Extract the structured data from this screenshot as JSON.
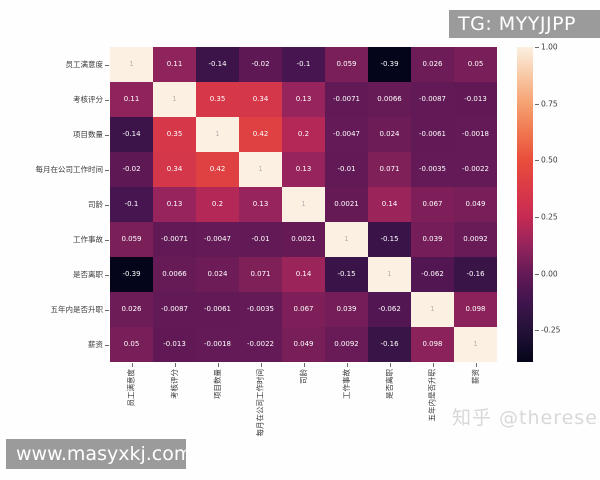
{
  "watermarks": {
    "tg_banner": "TG: MYYJJPP",
    "site_banner": "www.masyxkj.com",
    "zhihu": "知乎 @therese"
  },
  "colors": {
    "banner_bg": "#9b9b9b",
    "banner_text": "#ffffff",
    "zhihu_text": "#d8d8d8",
    "axis_label": "#3a3a3a",
    "annotation_on_dark": "#ffffff",
    "annotation_on_light": "#b9b5ae",
    "background": "#fefefe"
  },
  "chart_data": {
    "type": "heatmap",
    "title": "",
    "xlabel": "",
    "ylabel": "",
    "labels": [
      "员工满意度",
      "考核评分",
      "项目数量",
      "每月在公司工作时间",
      "司龄",
      "工作事故",
      "是否离职",
      "五年内是否升职",
      "薪资"
    ],
    "values": [
      [
        1,
        0.11,
        -0.14,
        -0.02,
        -0.1,
        0.059,
        -0.39,
        0.026,
        0.05
      ],
      [
        0.11,
        1,
        0.35,
        0.34,
        0.13,
        -0.0071,
        0.0066,
        -0.0087,
        -0.013
      ],
      [
        -0.14,
        0.35,
        1,
        0.42,
        0.2,
        -0.0047,
        0.024,
        -0.0061,
        -0.0018
      ],
      [
        -0.02,
        0.34,
        0.42,
        1,
        0.13,
        -0.01,
        0.071,
        -0.0035,
        -0.0022
      ],
      [
        -0.1,
        0.13,
        0.2,
        0.13,
        1,
        0.0021,
        0.14,
        0.067,
        0.049
      ],
      [
        0.059,
        -0.0071,
        -0.0047,
        -0.01,
        0.0021,
        1,
        -0.15,
        0.039,
        0.0092
      ],
      [
        -0.39,
        0.0066,
        0.024,
        0.071,
        0.14,
        -0.15,
        1,
        -0.062,
        -0.16
      ],
      [
        0.026,
        -0.0087,
        -0.0061,
        -0.0035,
        0.067,
        0.039,
        -0.062,
        1,
        0.098
      ],
      [
        0.05,
        -0.013,
        -0.0018,
        -0.0022,
        0.049,
        0.0092,
        -0.16,
        0.098,
        1
      ]
    ],
    "cell_labels": [
      [
        "1",
        "0.11",
        "-0.14",
        "-0.02",
        "-0.1",
        "0.059",
        "-0.39",
        "0.026",
        "0.05"
      ],
      [
        "0.11",
        "1",
        "0.35",
        "0.34",
        "0.13",
        "-0.0071",
        "0.0066",
        "-0.0087",
        "-0.013"
      ],
      [
        "-0.14",
        "0.35",
        "1",
        "0.42",
        "0.2",
        "-0.0047",
        "0.024",
        "-0.0061",
        "-0.0018"
      ],
      [
        "-0.02",
        "0.34",
        "0.42",
        "1",
        "0.13",
        "-0.01",
        "0.071",
        "-0.0035",
        "-0.0022"
      ],
      [
        "-0.1",
        "0.13",
        "0.2",
        "0.13",
        "1",
        "0.0021",
        "0.14",
        "0.067",
        "0.049"
      ],
      [
        "0.059",
        "-0.0071",
        "-0.0047",
        "-0.01",
        "0.0021",
        "1",
        "-0.15",
        "0.039",
        "0.0092"
      ],
      [
        "-0.39",
        "0.0066",
        "0.024",
        "0.071",
        "0.14",
        "-0.15",
        "1",
        "-0.062",
        "-0.16"
      ],
      [
        "0.026",
        "-0.0087",
        "-0.0061",
        "-0.0035",
        "0.067",
        "0.039",
        "-0.062",
        "1",
        "0.098"
      ],
      [
        "0.05",
        "-0.013",
        "-0.0018",
        "-0.0022",
        "0.049",
        "0.0092",
        "-0.16",
        "0.098",
        "1"
      ]
    ],
    "vmin": -0.39,
    "vmax": 1.0,
    "legend_position": "right-colorbar",
    "grid": false,
    "colorbar_ticks": [
      {
        "value": 1.0,
        "label": "1.00"
      },
      {
        "value": 0.75,
        "label": "0.75"
      },
      {
        "value": 0.5,
        "label": "0.50"
      },
      {
        "value": 0.25,
        "label": "0.25"
      },
      {
        "value": 0.0,
        "label": "0.00"
      },
      {
        "value": -0.25,
        "label": "-0.25"
      }
    ],
    "colormap": {
      "name": "rocket",
      "stops": [
        [
          0.0,
          "#04051a"
        ],
        [
          0.1,
          "#231238"
        ],
        [
          0.2,
          "#43154f"
        ],
        [
          0.28,
          "#641a56"
        ],
        [
          0.37,
          "#95245c"
        ],
        [
          0.46,
          "#c62a53"
        ],
        [
          0.55,
          "#da3a47"
        ],
        [
          0.64,
          "#e94d3b"
        ],
        [
          0.73,
          "#f0774f"
        ],
        [
          0.82,
          "#f5a171"
        ],
        [
          0.91,
          "#f9c9a5"
        ],
        [
          1.0,
          "#fbf0e1"
        ]
      ]
    }
  }
}
